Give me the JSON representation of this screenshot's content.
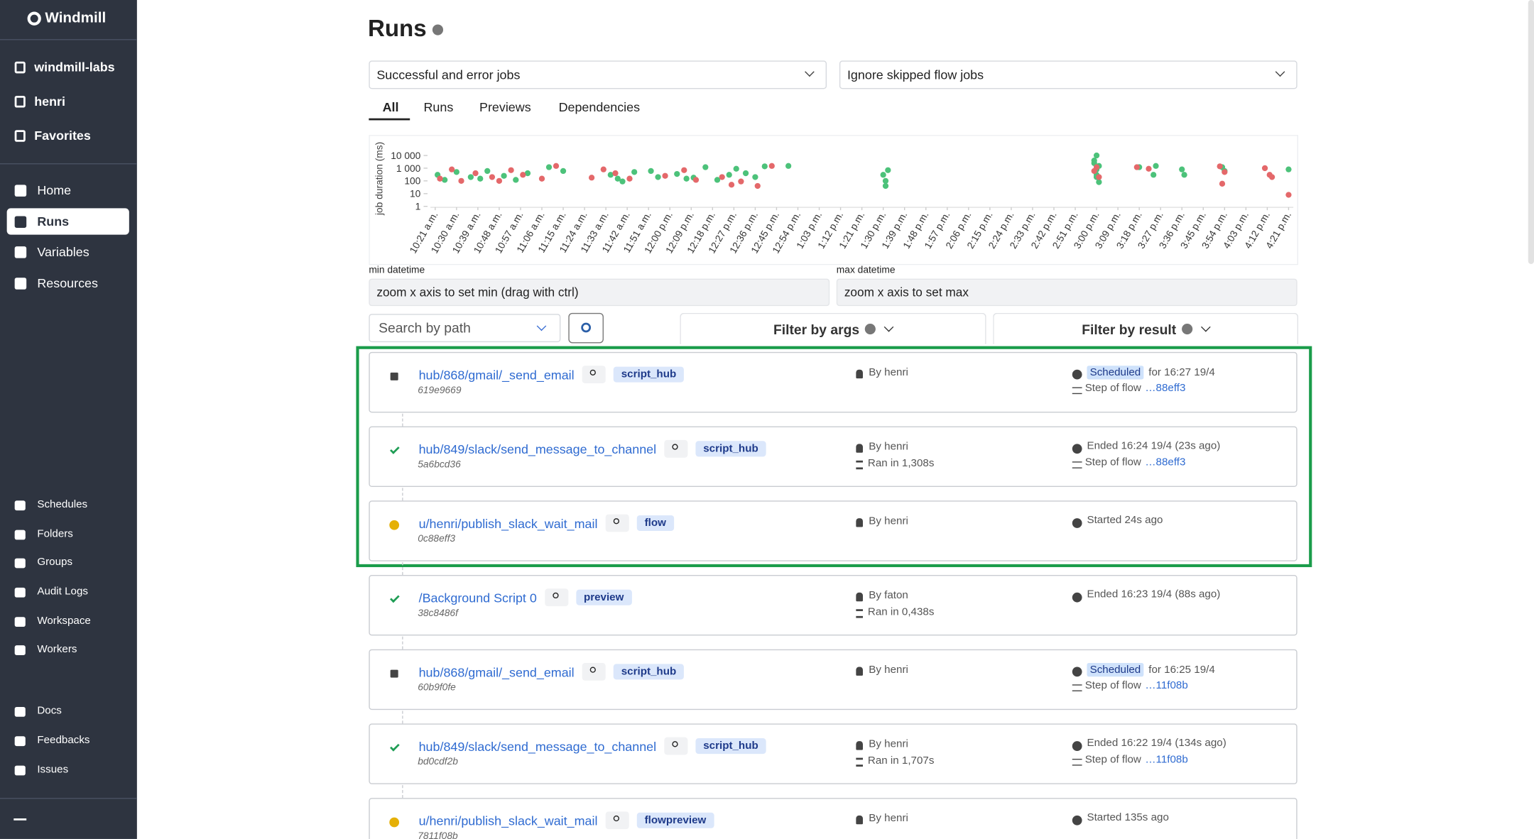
{
  "sidebar": {
    "brand": "Windmill",
    "workspace": "windmill-labs",
    "user": "henri",
    "favorites": "Favorites",
    "nav": [
      "Home",
      "Runs",
      "Variables",
      "Resources"
    ],
    "secondary": [
      "Schedules",
      "Folders",
      "Groups",
      "Audit Logs",
      "Workspace",
      "Workers"
    ],
    "links": [
      "Docs",
      "Feedbacks",
      "Issues"
    ]
  },
  "header": {
    "title": "Runs"
  },
  "filters": {
    "job_kind": "Successful and error jobs",
    "skipped": "Ignore skipped flow jobs"
  },
  "tabs": [
    "All",
    "Runs",
    "Previews",
    "Dependencies"
  ],
  "chart_data": {
    "type": "scatter",
    "y_label": "job duration (ms)",
    "log_y": true,
    "ylim": [
      1,
      100000
    ],
    "xlim": [
      619,
      983
    ],
    "yticks": [
      1,
      10,
      100,
      {
        "value": 1000,
        "label": "1 000"
      },
      {
        "value": 10000,
        "label": "10 000"
      }
    ],
    "xticks": [
      {
        "value": 621,
        "label": "10:21 a.m."
      },
      {
        "value": 630,
        "label": "10:30 a.m."
      },
      {
        "value": 639,
        "label": "10:39 a.m."
      },
      {
        "value": 648,
        "label": "10:48 a.m."
      },
      {
        "value": 657,
        "label": "10:57 a.m."
      },
      {
        "value": 666,
        "label": "11:06 a.m."
      },
      {
        "value": 675,
        "label": "11:15 a.m."
      },
      {
        "value": 684,
        "label": "11:24 a.m."
      },
      {
        "value": 693,
        "label": "11:33 a.m."
      },
      {
        "value": 702,
        "label": "11:42 a.m."
      },
      {
        "value": 711,
        "label": "11:51 a.m."
      },
      {
        "value": 720,
        "label": "12:00 p.m."
      },
      {
        "value": 729,
        "label": "12:09 p.m."
      },
      {
        "value": 738,
        "label": "12:18 p.m."
      },
      {
        "value": 747,
        "label": "12:27 p.m."
      },
      {
        "value": 756,
        "label": "12:36 p.m."
      },
      {
        "value": 765,
        "label": "12:45 p.m."
      },
      {
        "value": 774,
        "label": "12:54 p.m."
      },
      {
        "value": 783,
        "label": "1:03 p.m."
      },
      {
        "value": 792,
        "label": "1:12 p.m."
      },
      {
        "value": 801,
        "label": "1:21 p.m."
      },
      {
        "value": 810,
        "label": "1:30 p.m."
      },
      {
        "value": 819,
        "label": "1:39 p.m."
      },
      {
        "value": 828,
        "label": "1:48 p.m."
      },
      {
        "value": 837,
        "label": "1:57 p.m."
      },
      {
        "value": 846,
        "label": "2:06 p.m."
      },
      {
        "value": 855,
        "label": "2:15 p.m."
      },
      {
        "value": 864,
        "label": "2:24 p.m."
      },
      {
        "value": 873,
        "label": "2:33 p.m."
      },
      {
        "value": 882,
        "label": "2:42 p.m."
      },
      {
        "value": 891,
        "label": "2:51 p.m."
      },
      {
        "value": 900,
        "label": "3:00 p.m."
      },
      {
        "value": 909,
        "label": "3:09 p.m."
      },
      {
        "value": 918,
        "label": "3:18 p.m."
      },
      {
        "value": 927,
        "label": "3:27 p.m."
      },
      {
        "value": 936,
        "label": "3:36 p.m."
      },
      {
        "value": 945,
        "label": "3:45 p.m."
      },
      {
        "value": 954,
        "label": "3:54 p.m."
      },
      {
        "value": 963,
        "label": "4:03 p.m."
      },
      {
        "value": 972,
        "label": "4:12 p.m."
      },
      {
        "value": 981,
        "label": "4:21 p.m."
      }
    ],
    "series": [
      {
        "color": "#4cc27a",
        "x": [
          622,
          625,
          630,
          636,
          640,
          643,
          650,
          655,
          660,
          669,
          675,
          695,
          698,
          700,
          705,
          712,
          715,
          723,
          727,
          730,
          735,
          740,
          745,
          748,
          752,
          756,
          760,
          770,
          810,
          811,
          812,
          811,
          899,
          900,
          900,
          901,
          899,
          900,
          900,
          901,
          918,
          924,
          925,
          936,
          937,
          953,
          954,
          981
        ],
        "values": [
          300,
          120,
          500,
          200,
          150,
          600,
          250,
          120,
          400,
          1200,
          600,
          300,
          150,
          90,
          500,
          600,
          200,
          350,
          150,
          180,
          1200,
          120,
          300,
          900,
          400,
          200,
          1400,
          1500,
          300,
          100,
          700,
          40,
          2500,
          800,
          200,
          80,
          4000,
          300,
          10000,
          1500,
          1200,
          300,
          1500,
          800,
          300,
          1200,
          600,
          800
        ]
      },
      {
        "color": "#e4686a",
        "x": [
          623,
          628,
          632,
          638,
          645,
          648,
          653,
          658,
          666,
          672,
          687,
          692,
          697,
          703,
          718,
          726,
          731,
          742,
          746,
          750,
          757,
          763,
          900,
          901,
          899,
          917,
          922,
          952,
          953,
          954,
          971,
          973,
          974,
          981
        ],
        "values": [
          150,
          800,
          100,
          400,
          200,
          100,
          700,
          300,
          150,
          1500,
          180,
          800,
          400,
          150,
          250,
          700,
          120,
          200,
          50,
          90,
          40,
          1500,
          1200,
          200,
          600,
          1200,
          900,
          1400,
          60,
          500,
          1000,
          300,
          200,
          8
        ]
      }
    ]
  },
  "range": {
    "min_label": "min datetime",
    "min_placeholder": "zoom x axis to set min (drag with ctrl)",
    "max_label": "max datetime",
    "max_placeholder": "zoom x axis to set max"
  },
  "search": {
    "placeholder": "Search by path",
    "filter_args": "Filter by args",
    "filter_result": "Filter by result"
  },
  "jobs": [
    {
      "status": "scheduled",
      "path": "hub/868/gmail/_send_email",
      "hash": "619e9669",
      "badge": "script_hub",
      "by": "By henri",
      "state_tag": "Scheduled",
      "state": "for 16:27 19/4",
      "step_label": "Step of flow",
      "step_link": "…88eff3"
    },
    {
      "status": "success",
      "path": "hub/849/slack/send_message_to_channel",
      "hash": "5a6bcd36",
      "badge": "script_hub",
      "by": "By henri",
      "ran": "Ran in 1,308s",
      "state": "Ended 16:24 19/4 (23s ago)",
      "step_label": "Step of flow",
      "step_link": "…88eff3"
    },
    {
      "status": "running",
      "path": "u/henri/publish_slack_wait_mail",
      "hash": "0c88eff3",
      "badge": "flow",
      "by": "By henri",
      "state": "Started 24s ago"
    },
    {
      "status": "success",
      "path": "/Background Script 0",
      "hash": "38c8486f",
      "badge": "preview",
      "by": "By faton",
      "ran": "Ran in 0,438s",
      "state": "Ended 16:23 19/4 (88s ago)"
    },
    {
      "status": "scheduled",
      "path": "hub/868/gmail/_send_email",
      "hash": "60b9f0fe",
      "badge": "script_hub",
      "by": "By henri",
      "state_tag": "Scheduled",
      "state": "for 16:25 19/4",
      "step_label": "Step of flow",
      "step_link": "…11f08b"
    },
    {
      "status": "success",
      "path": "hub/849/slack/send_message_to_channel",
      "hash": "bd0cdf2b",
      "badge": "script_hub",
      "by": "By henri",
      "ran": "Ran in 1,707s",
      "state": "Ended 16:22 19/4 (134s ago)",
      "step_label": "Step of flow",
      "step_link": "…11f08b"
    },
    {
      "status": "running",
      "path": "u/henri/publish_slack_wait_mail",
      "hash": "7811f08b",
      "badge": "flowpreview",
      "by": "By henri",
      "state": "Started 135s ago"
    }
  ]
}
